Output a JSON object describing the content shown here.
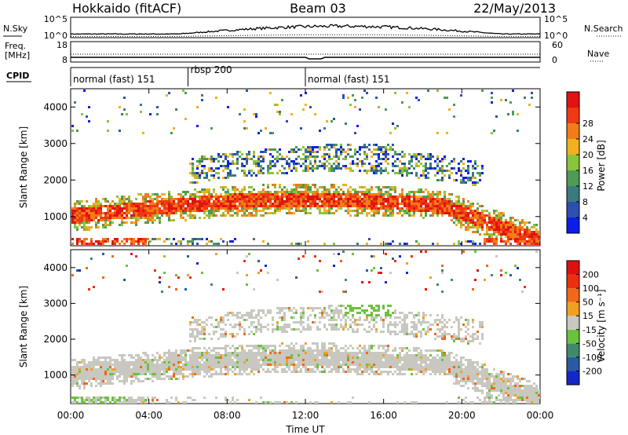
{
  "header": {
    "station": "Hokkaido (fitACF)",
    "beam": "Beam 03",
    "date": "22/May/2013"
  },
  "summary": {
    "nsky_label": "N.Sky",
    "nsearch_label": "N.Search",
    "freq_label_1": "Freq.",
    "freq_label_2": "[MHz]",
    "nave_label": "Nave",
    "cpid_label": "CPID",
    "noise_ticks": [
      "10^5",
      "10^0"
    ],
    "freq_ticks": [
      "18",
      "8"
    ],
    "nave_ticks": [
      "60",
      "0"
    ]
  },
  "cpid": [
    {
      "label": "normal (fast) 151",
      "start": "00:00"
    },
    {
      "label": "rbsp 200",
      "start": "06:00"
    },
    {
      "label": "normal (fast) 151",
      "start": "12:00"
    }
  ],
  "chart_data": [
    {
      "type": "heatmap",
      "title": "",
      "xlabel": "Time UT",
      "ylabel": "Slant Range [km]",
      "x_ticks": [
        "00:00",
        "04:00",
        "08:00",
        "12:00",
        "16:00",
        "20:00",
        "00:00"
      ],
      "y_ticks": [
        "1000",
        "2000",
        "3000",
        "4000"
      ],
      "xlim": [
        0,
        24
      ],
      "ylim": [
        200,
        4500
      ],
      "colorbar": {
        "label": "Power [dB]",
        "ticks": [
          "4",
          "8",
          "12",
          "16",
          "20",
          "24",
          "28"
        ],
        "colors": [
          "#0b1ee8",
          "#2c4fb0",
          "#3d7a7f",
          "#4d9b55",
          "#8ac43a",
          "#f0b020",
          "#f27d18",
          "#ee3a12",
          "#e21212"
        ]
      }
    },
    {
      "type": "heatmap",
      "title": "",
      "xlabel": "Time UT",
      "ylabel": "Slant Range [km]",
      "x_ticks": [
        "00:00",
        "04:00",
        "08:00",
        "12:00",
        "16:00",
        "20:00",
        "00:00"
      ],
      "y_ticks": [
        "1000",
        "2000",
        "3000",
        "4000"
      ],
      "xlim": [
        0,
        24
      ],
      "ylim": [
        200,
        4500
      ],
      "colorbar": {
        "label": "Velocity [m s⁻¹]",
        "ticks": [
          "200",
          "100",
          "50",
          "15",
          "-15",
          "-50",
          "-100",
          "-200"
        ],
        "colors": [
          "#1428c8",
          "#2a5aa0",
          "#3f8a6a",
          "#6bc23d",
          "#c8c8c0",
          "#f0a020",
          "#f06818",
          "#ea3010",
          "#e01010"
        ]
      }
    }
  ]
}
